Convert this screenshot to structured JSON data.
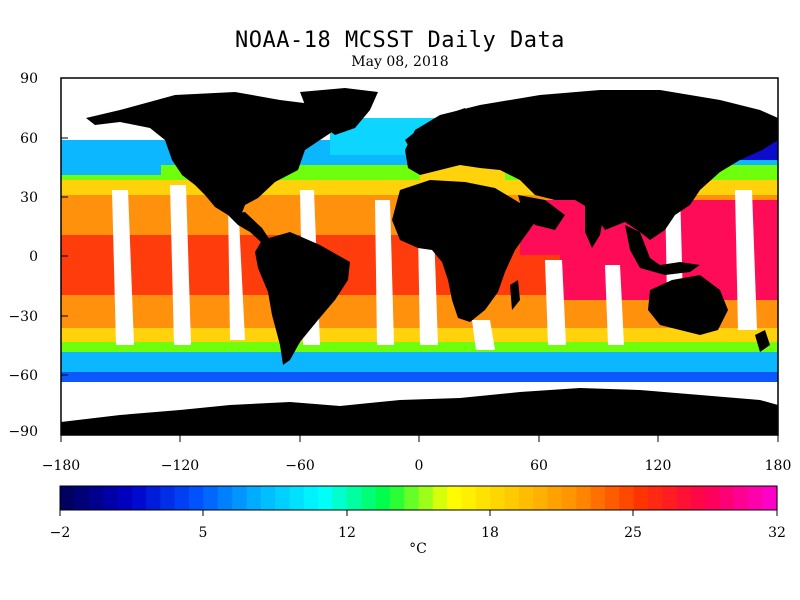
{
  "title": "NOAA-18 MCSST Daily Data",
  "subtitle": "May 08, 2018",
  "map": {
    "projection": "equirectangular",
    "land_color": "#000000",
    "no_data_color": "#ffffff",
    "lat_ticks": [
      "90",
      "60",
      "30",
      "0",
      "−30",
      "−60",
      "−90"
    ],
    "lon_ticks": [
      "−180",
      "−120",
      "−60",
      "0",
      "60",
      "120",
      "180"
    ]
  },
  "colorbar": {
    "min": -2,
    "max": 32,
    "unit": "°C",
    "tick_labels": [
      "−2",
      "5",
      "12",
      "18",
      "25",
      "32"
    ],
    "colors": [
      "#000060",
      "#0000c8",
      "#0050ff",
      "#00b4ff",
      "#00ffff",
      "#00ff40",
      "#ffff00",
      "#ffc800",
      "#ff8c00",
      "#ff3200",
      "#ff0050",
      "#ff00c8"
    ]
  }
}
